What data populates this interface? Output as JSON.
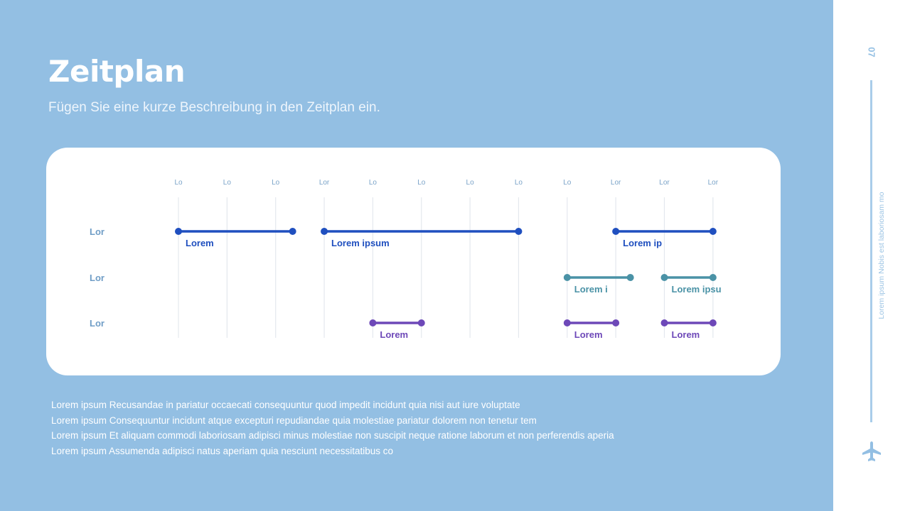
{
  "header": {
    "title": "Zeitplan",
    "subtitle": "Fügen Sie eine kurze Beschreibung in den Zeitplan ein."
  },
  "chart_data": {
    "type": "gantt",
    "columns": [
      "Lo",
      "Lo",
      "Lo",
      "Lor",
      "Lo",
      "Lo",
      "Lo",
      "Lo",
      "Lo",
      "Lor",
      "Lor",
      "Lor"
    ],
    "rows": [
      "Lor",
      "Lor",
      "Lor"
    ],
    "grid": true,
    "series": [
      {
        "row": 0,
        "color": "#1f4fbf",
        "bars": [
          {
            "start": 0,
            "end": 2.35,
            "label": "Lorem"
          },
          {
            "start": 3,
            "end": 7,
            "label": "Lorem ipsum"
          },
          {
            "start": 9,
            "end": 11,
            "label": "Lorem ip"
          }
        ]
      },
      {
        "row": 1,
        "color": "#4a92a6",
        "bars": [
          {
            "start": 8,
            "end": 9.3,
            "label": "Lorem i"
          },
          {
            "start": 10,
            "end": 11,
            "label": "Lorem ipsu"
          }
        ]
      },
      {
        "row": 2,
        "color": "#6d48b8",
        "bars": [
          {
            "start": 4,
            "end": 5,
            "label": "Lorem"
          },
          {
            "start": 8,
            "end": 9,
            "label": "Lorem"
          },
          {
            "start": 10,
            "end": 11,
            "label": "Lorem"
          }
        ]
      }
    ]
  },
  "notes": [
    "Lorem ipsum Recusandae in pariatur occaecati consequuntur quod impedit incidunt quia nisi aut iure voluptate",
    "Lorem ipsum Consequuntur incidunt atque excepturi repudiandae quia molestiae pariatur dolorem non tenetur tem",
    "Lorem ipsum Et aliquam commodi laboriosam adipisci minus molestiae non suscipit neque ratione laborum et non perferendis aperia",
    "Lorem ipsum Assumenda adipisci natus aperiam quia nesciunt necessitatibus co"
  ],
  "side": {
    "page_number": "07",
    "vertical_text": "Lorem ipsum Nobis est laboriosam mo",
    "icon": "airplane-icon"
  },
  "colors": {
    "background": "#93bfe3",
    "tick_label": "#7aa3c8",
    "row_label": "#6f9dc6",
    "grid": "#e4e8ee"
  }
}
